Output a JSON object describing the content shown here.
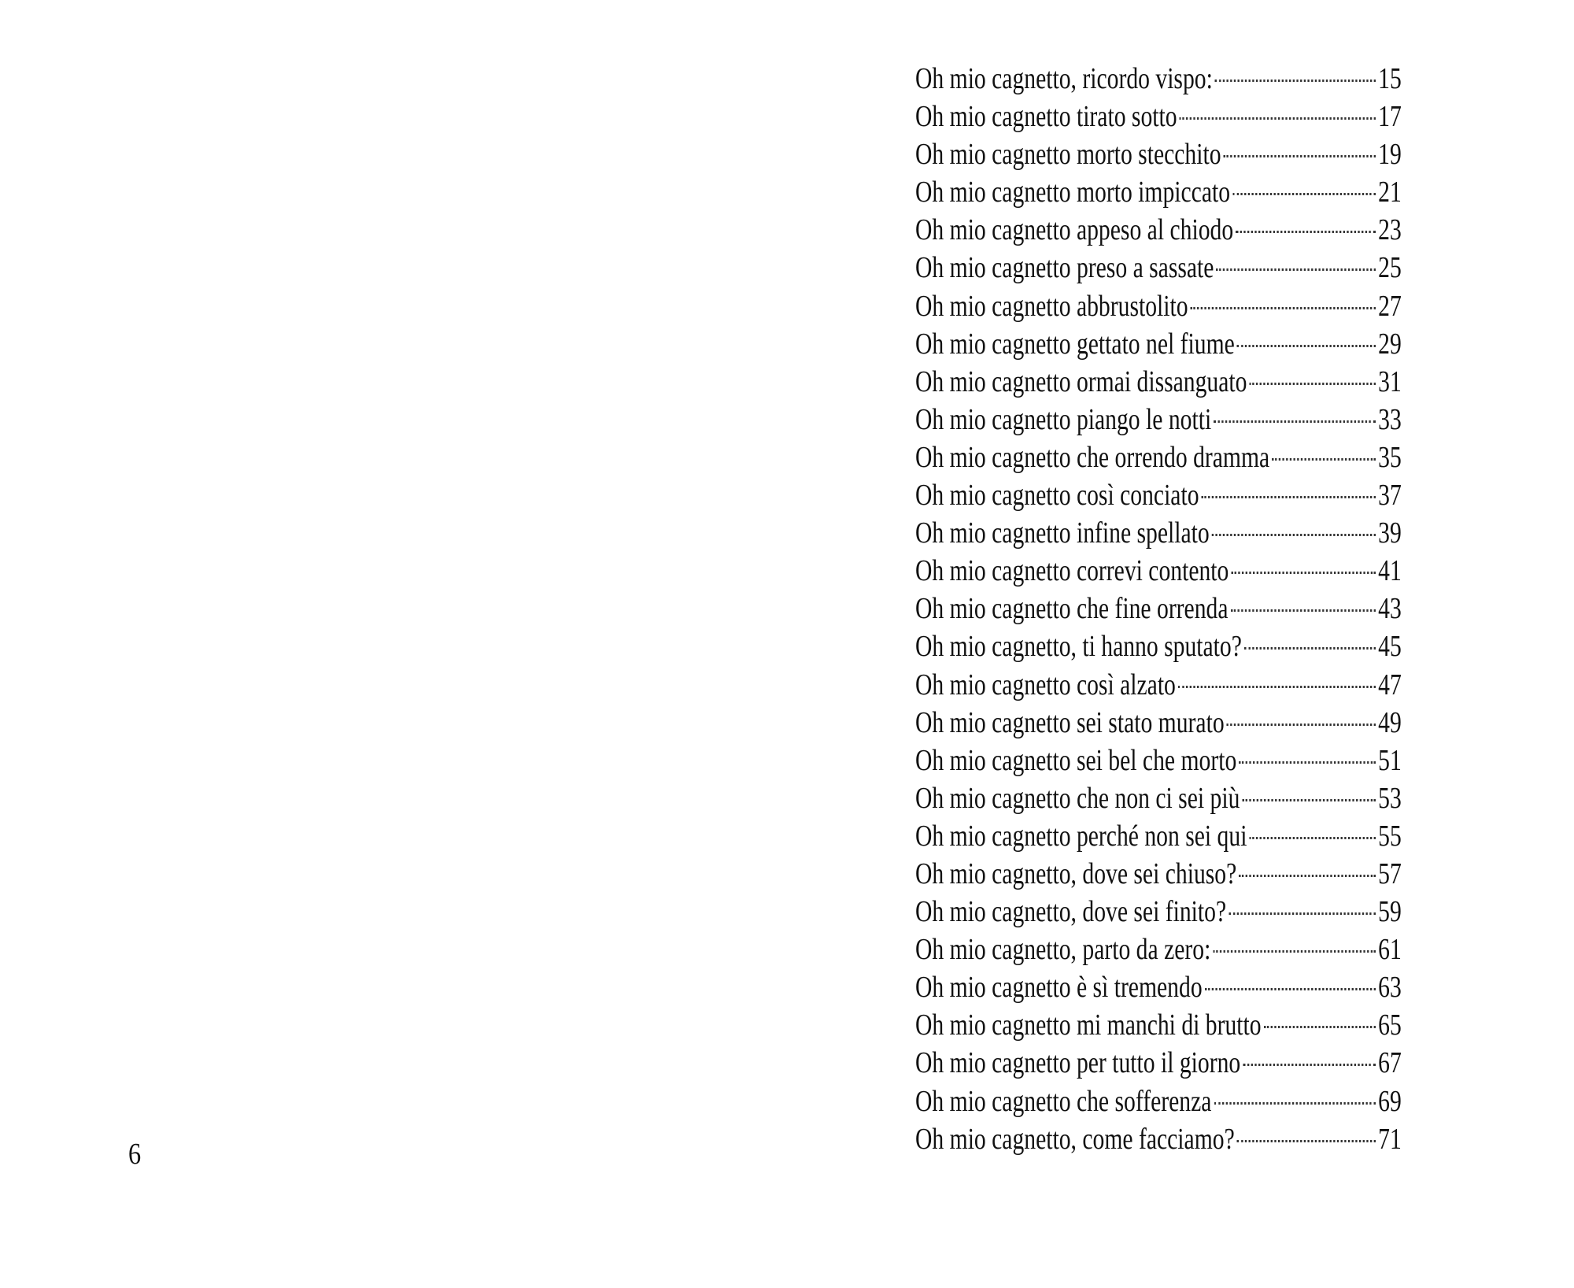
{
  "toc": [
    {
      "title": "Oh mio cagnetto, ricordo vispo:",
      "page": "15"
    },
    {
      "title": "Oh mio cagnetto tirato sotto",
      "page": "17"
    },
    {
      "title": "Oh mio cagnetto morto stecchito",
      "page": "19"
    },
    {
      "title": "Oh mio cagnetto morto impiccato",
      "page": "21"
    },
    {
      "title": "Oh mio cagnetto appeso al chiodo",
      "page": "23"
    },
    {
      "title": "Oh mio cagnetto preso a sassate",
      "page": "25"
    },
    {
      "title": "Oh mio cagnetto abbrustolito",
      "page": "27"
    },
    {
      "title": "Oh mio cagnetto gettato nel fiume",
      "page": "29"
    },
    {
      "title": "Oh mio cagnetto ormai dissanguato",
      "page": "31"
    },
    {
      "title": "Oh mio cagnetto piango le notti",
      "page": "33"
    },
    {
      "title": "Oh mio cagnetto che orrendo dramma",
      "page": "35"
    },
    {
      "title": "Oh mio cagnetto così conciato",
      "page": "37"
    },
    {
      "title": "Oh mio cagnetto infine spellato",
      "page": "39"
    },
    {
      "title": "Oh mio cagnetto correvi contento",
      "page": "41"
    },
    {
      "title": "Oh mio cagnetto che fine orrenda",
      "page": "43"
    },
    {
      "title": "Oh mio cagnetto, ti hanno sputato?",
      "page": "45"
    },
    {
      "title": "Oh mio cagnetto così alzato",
      "page": "47"
    },
    {
      "title": "Oh mio cagnetto sei stato murato",
      "page": "49"
    },
    {
      "title": "Oh mio cagnetto sei bel che morto",
      "page": "51"
    },
    {
      "title": "Oh mio cagnetto che non ci sei più",
      "page": "53"
    },
    {
      "title": "Oh mio cagnetto perché non sei qui",
      "page": "55"
    },
    {
      "title": "Oh mio cagnetto, dove sei chiuso?",
      "page": "57"
    },
    {
      "title": "Oh mio cagnetto, dove sei finito?",
      "page": "59"
    },
    {
      "title": "Oh mio cagnetto, parto da zero:",
      "page": "61"
    },
    {
      "title": "Oh mio cagnetto è sì tremendo",
      "page": "63"
    },
    {
      "title": "Oh mio cagnetto mi manchi di brutto",
      "page": "65"
    },
    {
      "title": "Oh mio cagnetto per tutto il giorno",
      "page": "67"
    },
    {
      "title": "Oh mio cagnetto che sofferenza",
      "page": "69"
    },
    {
      "title": "Oh mio cagnetto, come facciamo?",
      "page": "71"
    }
  ],
  "page_number": "6"
}
